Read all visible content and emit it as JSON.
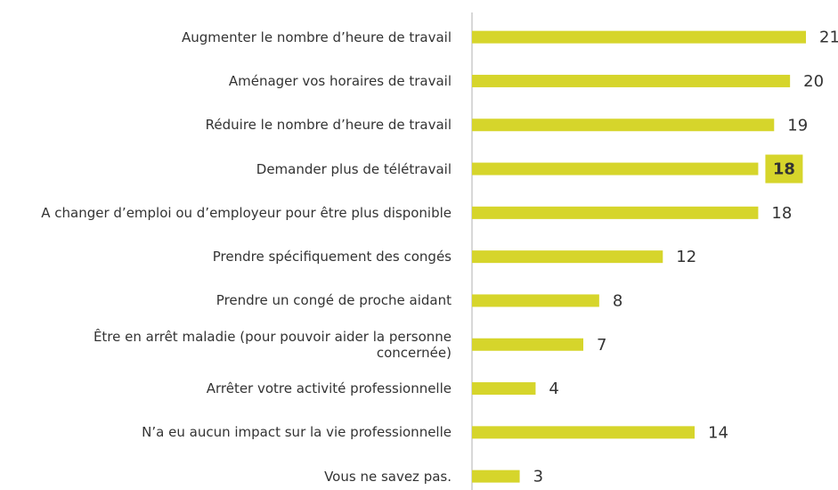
{
  "chart_data": {
    "type": "barh",
    "categories": [
      "Augmenter le nombre d’heure de travail",
      "Aménager vos horaires de travail",
      "Réduire le nombre d’heure de travail",
      "Demander plus de télétravail",
      "A changer d’emploi ou d’employeur pour être plus disponible",
      "Prendre spécifiquement des congés",
      "Prendre un congé de proche aidant",
      "Être en arrêt maladie (pour pouvoir aider la personne concernée)",
      "Arrêter votre activité professionnelle",
      "N’a eu aucun impact sur la vie professionnelle",
      "Vous ne savez pas."
    ],
    "values": [
      21,
      20,
      19,
      18,
      18,
      12,
      8,
      7,
      4,
      14,
      3
    ],
    "color": "#d6d52b",
    "highlight": 3,
    "xlim": [
      0,
      21
    ]
  }
}
